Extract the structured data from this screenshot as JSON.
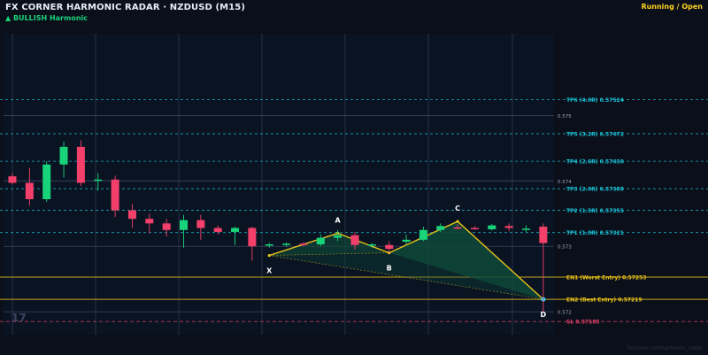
{
  "header": {
    "title": "FX CORNER HARMONIC RADAR  ·  NZDUSD (M15)",
    "subtitle": "▲ BULLISH  Harmonic",
    "status": "Running / Open"
  },
  "watermark": "17",
  "footer": "fxcorner.net/harmonic_radar",
  "colors": {
    "bg": "#0b0f1a",
    "plot_bg": "#0a1322",
    "bull": "#19d37a",
    "bear": "#f2406a",
    "tp": "#19c2d6",
    "entry": "#e8c21a",
    "sl": "#e2416a",
    "pattern": "#e8c21a",
    "pattern_fill": "#0f4a3a"
  },
  "chart_data": {
    "type": "candlestick",
    "y_ticks": [
      {
        "value": 0.575,
        "label": "0.575"
      },
      {
        "value": 0.574,
        "label": "0.574"
      },
      {
        "value": 0.573,
        "label": "0.573"
      },
      {
        "value": 0.572,
        "label": "0.572"
      }
    ],
    "ylim": [
      0.57165,
      0.57625
    ],
    "candles": [
      {
        "o": 0.57407,
        "h": 0.57412,
        "l": 0.57395,
        "c": 0.57397
      },
      {
        "o": 0.57397,
        "h": 0.5742,
        "l": 0.57362,
        "c": 0.57372
      },
      {
        "o": 0.57372,
        "h": 0.5743,
        "l": 0.57368,
        "c": 0.57425
      },
      {
        "o": 0.57425,
        "h": 0.5746,
        "l": 0.57405,
        "c": 0.57452
      },
      {
        "o": 0.57452,
        "h": 0.57462,
        "l": 0.57392,
        "c": 0.57397
      },
      {
        "o": 0.574,
        "h": 0.57412,
        "l": 0.57385,
        "c": 0.57402
      },
      {
        "o": 0.57402,
        "h": 0.57408,
        "l": 0.57345,
        "c": 0.57355
      },
      {
        "o": 0.57355,
        "h": 0.57365,
        "l": 0.57328,
        "c": 0.57342
      },
      {
        "o": 0.57342,
        "h": 0.5735,
        "l": 0.5732,
        "c": 0.57335
      },
      {
        "o": 0.57335,
        "h": 0.57342,
        "l": 0.57315,
        "c": 0.57325
      },
      {
        "o": 0.57325,
        "h": 0.57348,
        "l": 0.57298,
        "c": 0.5734
      },
      {
        "o": 0.5734,
        "h": 0.57348,
        "l": 0.5731,
        "c": 0.57328
      },
      {
        "o": 0.57328,
        "h": 0.57332,
        "l": 0.57318,
        "c": 0.57322
      },
      {
        "o": 0.57322,
        "h": 0.5733,
        "l": 0.57302,
        "c": 0.57328
      },
      {
        "o": 0.57328,
        "h": 0.5733,
        "l": 0.57278,
        "c": 0.573
      },
      {
        "o": 0.57302,
        "h": 0.57305,
        "l": 0.57298,
        "c": 0.57303
      },
      {
        "o": 0.57302,
        "h": 0.57306,
        "l": 0.57299,
        "c": 0.57304
      },
      {
        "o": 0.57304,
        "h": 0.57306,
        "l": 0.573,
        "c": 0.57303
      },
      {
        "o": 0.57303,
        "h": 0.57318,
        "l": 0.573,
        "c": 0.57313
      },
      {
        "o": 0.57313,
        "h": 0.57325,
        "l": 0.57308,
        "c": 0.57317
      },
      {
        "o": 0.57317,
        "h": 0.57322,
        "l": 0.57295,
        "c": 0.57302
      },
      {
        "o": 0.57302,
        "h": 0.57305,
        "l": 0.57298,
        "c": 0.57303
      },
      {
        "o": 0.57302,
        "h": 0.57308,
        "l": 0.5729,
        "c": 0.57296
      },
      {
        "o": 0.57307,
        "h": 0.57318,
        "l": 0.57302,
        "c": 0.5731
      },
      {
        "o": 0.5731,
        "h": 0.5733,
        "l": 0.57308,
        "c": 0.57325
      },
      {
        "o": 0.57325,
        "h": 0.57335,
        "l": 0.57322,
        "c": 0.57331
      },
      {
        "o": 0.57329,
        "h": 0.57334,
        "l": 0.57326,
        "c": 0.57327
      },
      {
        "o": 0.57328,
        "h": 0.57331,
        "l": 0.57325,
        "c": 0.57326
      },
      {
        "o": 0.57326,
        "h": 0.57334,
        "l": 0.57324,
        "c": 0.57332
      },
      {
        "o": 0.57331,
        "h": 0.57335,
        "l": 0.57323,
        "c": 0.57328
      },
      {
        "o": 0.57325,
        "h": 0.57332,
        "l": 0.57322,
        "c": 0.57327
      },
      {
        "o": 0.5733,
        "h": 0.57335,
        "l": 0.572,
        "c": 0.57305
      }
    ],
    "pattern": {
      "points": [
        {
          "label": "X",
          "candle": 15,
          "value": 0.57286
        },
        {
          "label": "A",
          "candle": 19,
          "value": 0.5732
        },
        {
          "label": "B",
          "candle": 22,
          "value": 0.5729
        },
        {
          "label": "C",
          "candle": 26,
          "value": 0.57338
        },
        {
          "label": "D",
          "candle": 31,
          "value": 0.57219
        }
      ]
    },
    "levels": [
      {
        "kind": "tp",
        "label": "TP6 (4.0R)  0.57524",
        "value": 0.57524
      },
      {
        "kind": "tp",
        "label": "TP5 (3.2R)  0.57472",
        "value": 0.57472
      },
      {
        "kind": "tp",
        "label": "TP4 (2.6R)  0.57430",
        "value": 0.5743
      },
      {
        "kind": "tp",
        "label": "TP3 (2.0R)  0.57388",
        "value": 0.57388
      },
      {
        "kind": "tp",
        "label": "TP2 (1.5R)  0.57355",
        "value": 0.57355
      },
      {
        "kind": "tp",
        "label": "TP1 (1.0R)  0.57321",
        "value": 0.57321
      },
      {
        "kind": "entry",
        "label": "EN1 (Worst Entry)  0.57253",
        "value": 0.57253
      },
      {
        "kind": "entry",
        "label": "EN2 (Best Entry)  0.57219",
        "value": 0.57219
      },
      {
        "kind": "sl",
        "label": "SL  0.57185",
        "value": 0.57185
      }
    ]
  }
}
